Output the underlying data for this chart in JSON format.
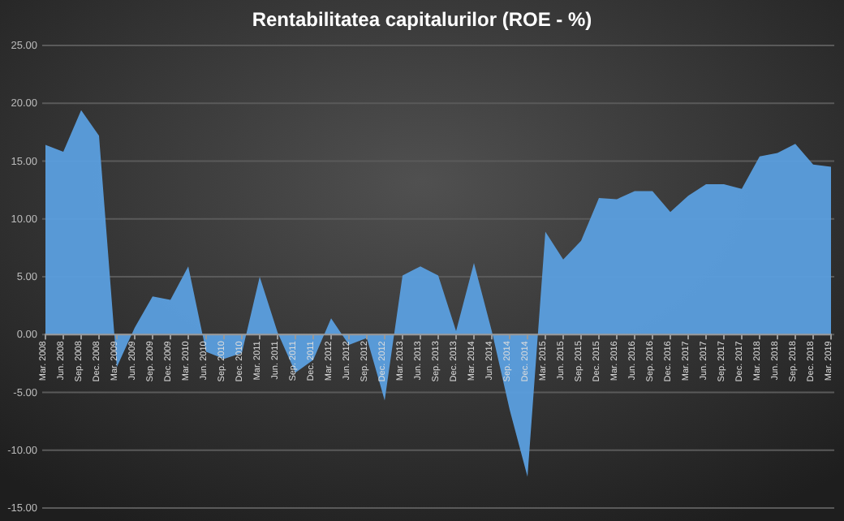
{
  "chart_data": {
    "type": "area",
    "title": "Rentabilitatea  capitalurilor  (ROE - %)",
    "categories": [
      "Mar. 2008",
      "Jun. 2008",
      "Sep. 2008",
      "Dec. 2008",
      "Mar. 2009",
      "Jun. 2009",
      "Sep. 2009",
      "Dec. 2009",
      "Mar. 2010",
      "Jun. 2010",
      "Sep. 2010",
      "Dec. 2010",
      "Mar. 2011",
      "Jun. 2011",
      "Sep. 2011",
      "Dec. 2011",
      "Mar. 2012",
      "Jun. 2012",
      "Sep. 2012",
      "Dec. 2012",
      "Mar. 2013",
      "Jun. 2013",
      "Sep. 2013",
      "Dec. 2013",
      "Mar. 2014",
      "Jun. 2014",
      "Sep. 2014",
      "Dec. 2014",
      "Mar. 2015",
      "Jun. 2015",
      "Sep. 2015",
      "Dec. 2015",
      "Mar. 2016",
      "Jun. 2016",
      "Sep. 2016",
      "Dec. 2016",
      "Mar. 2017",
      "Jun. 2017",
      "Sep. 2017",
      "Dec. 2017",
      "Mar. 2018",
      "Jun. 2018",
      "Sep. 2018",
      "Dec. 2018",
      "Mar. 2019"
    ],
    "series": [
      {
        "color": "#5b9fdf",
        "values": [
          16.4,
          15.8,
          19.4,
          17.2,
          -2.8,
          0.6,
          3.3,
          3.0,
          5.9,
          -1.5,
          -2.1,
          -1.6,
          5.0,
          0.2,
          -3.3,
          -2.2,
          1.4,
          -0.9,
          -0.3,
          -5.7,
          5.1,
          5.9,
          5.1,
          0.3,
          6.2,
          0.3,
          -6.5,
          -12.3,
          8.9,
          6.5,
          8.1,
          11.8,
          11.7,
          12.4,
          12.4,
          10.6,
          12.0,
          13.0,
          13.0,
          12.6,
          15.4,
          15.7,
          16.5,
          14.7,
          14.5
        ]
      }
    ],
    "ylim": [
      -15,
      25
    ],
    "yticks": [
      {
        "value": -15,
        "label": "-15.00"
      },
      {
        "value": -10,
        "label": "-10.00"
      },
      {
        "value": -5,
        "label": "-5.00"
      },
      {
        "value": 0,
        "label": "0.00"
      },
      {
        "value": 5,
        "label": "5.00"
      },
      {
        "value": 10,
        "label": "10.00"
      },
      {
        "value": 15,
        "label": "15.00"
      },
      {
        "value": 20,
        "label": "20.00"
      },
      {
        "value": 25,
        "label": "25.00"
      }
    ],
    "grid": "y"
  }
}
